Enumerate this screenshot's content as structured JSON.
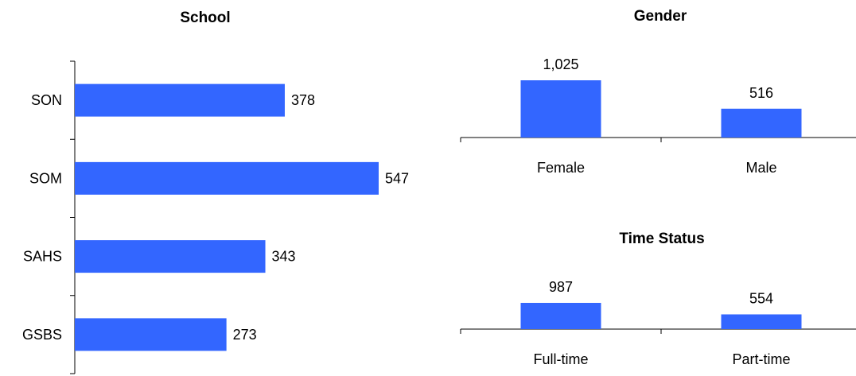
{
  "chart_data": [
    {
      "type": "bar",
      "orientation": "horizontal",
      "title": "School",
      "categories": [
        "SON",
        "SOM",
        "SAHS",
        "GSBS"
      ],
      "values": [
        378,
        547,
        343,
        273
      ],
      "value_labels": [
        "378",
        "547",
        "343",
        "273"
      ],
      "color": "#3366ff"
    },
    {
      "type": "bar",
      "orientation": "vertical",
      "title": "Gender",
      "categories": [
        "Female",
        "Male"
      ],
      "values": [
        1025,
        516
      ],
      "value_labels": [
        "1,025",
        "516"
      ],
      "color": "#3366ff"
    },
    {
      "type": "bar",
      "orientation": "vertical",
      "title": "Time Status",
      "categories": [
        "Full-time",
        "Part-time"
      ],
      "values": [
        987,
        554
      ],
      "value_labels": [
        "987",
        "554"
      ],
      "color": "#3366ff"
    }
  ]
}
